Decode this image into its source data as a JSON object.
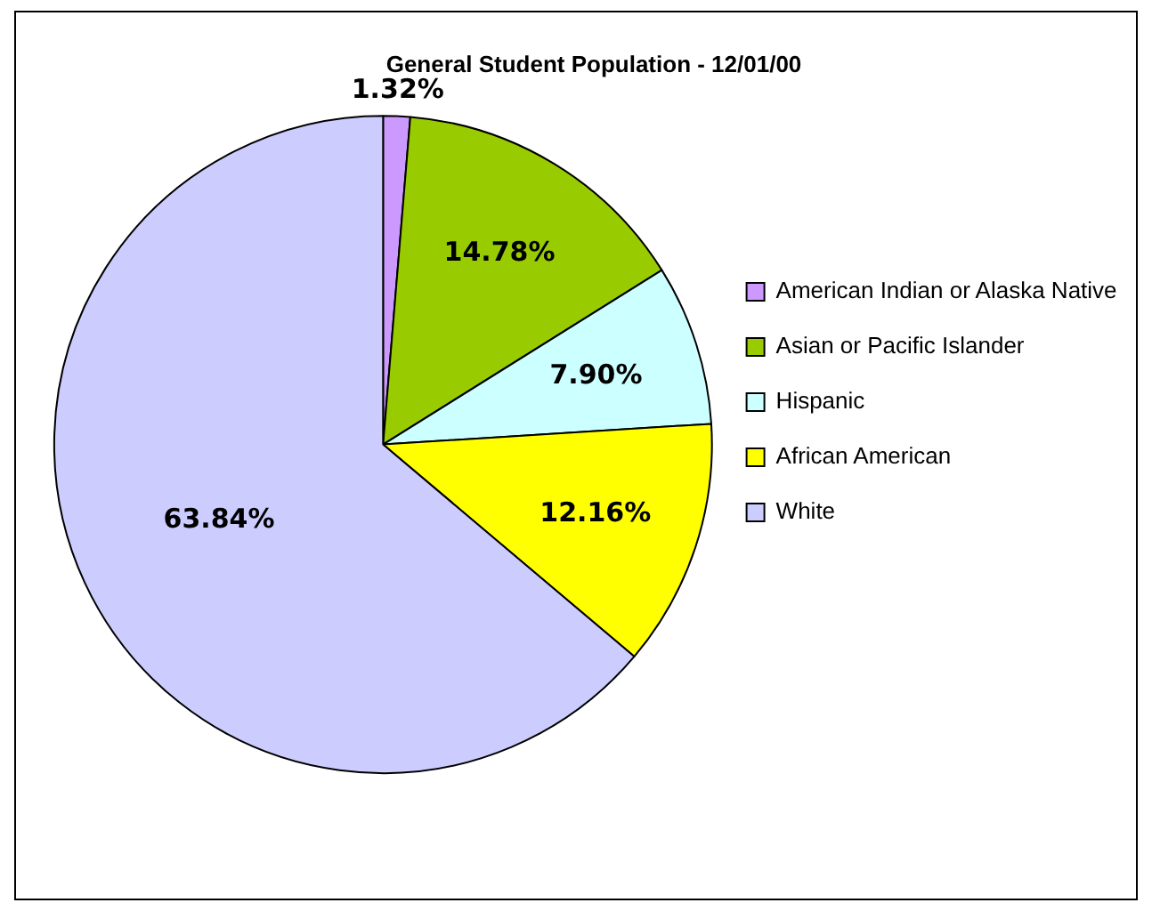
{
  "chart_data": {
    "type": "pie",
    "title": "General Student Population - 12/01/00",
    "categories": [
      "American Indian or Alaska Native",
      "Asian or Pacific Islander",
      "Hispanic",
      "African American",
      "White"
    ],
    "values": [
      1.32,
      14.78,
      7.9,
      12.16,
      63.84
    ],
    "value_labels": [
      "1.32%",
      "14.78%",
      "7.90%",
      "12.16%",
      "63.84%"
    ],
    "colors": [
      "#cc99ff",
      "#99cc00",
      "#ccffff",
      "#ffff00",
      "#ccccff"
    ],
    "legend": "right"
  }
}
